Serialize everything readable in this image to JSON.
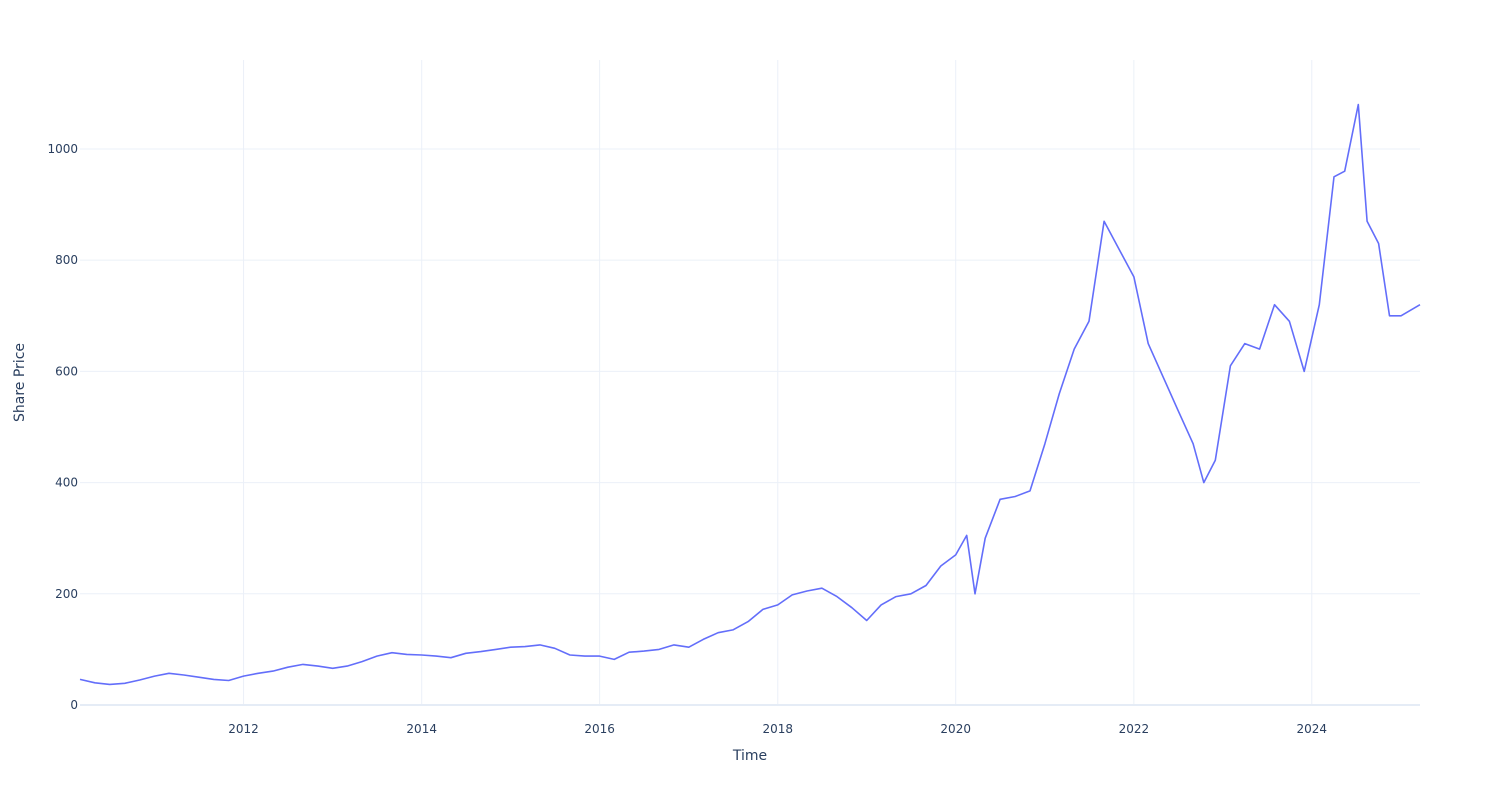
{
  "chart_data": {
    "type": "line",
    "title": "",
    "xlabel": "Time",
    "ylabel": "Share Price",
    "x_range": [
      "2010-03-01",
      "2025-03-20"
    ],
    "ylim": [
      0,
      1160
    ],
    "x_ticks": [
      {
        "date": "2012-01-01",
        "label": "2012"
      },
      {
        "date": "2014-01-01",
        "label": "2014"
      },
      {
        "date": "2016-01-01",
        "label": "2016"
      },
      {
        "date": "2018-01-01",
        "label": "2018"
      },
      {
        "date": "2020-01-01",
        "label": "2020"
      },
      {
        "date": "2022-01-01",
        "label": "2022"
      },
      {
        "date": "2024-01-01",
        "label": "2024"
      }
    ],
    "y_ticks": [
      {
        "value": 0,
        "label": "0"
      },
      {
        "value": 200,
        "label": "200"
      },
      {
        "value": 400,
        "label": "400"
      },
      {
        "value": 600,
        "label": "600"
      },
      {
        "value": 800,
        "label": "800"
      },
      {
        "value": 1000,
        "label": "1000"
      }
    ],
    "grid": true,
    "legend": "none",
    "line_color": "#636efa",
    "series": [
      {
        "x": [
          "2010-03-01",
          "2010-05-01",
          "2010-07-01",
          "2010-09-01",
          "2010-11-01",
          "2011-01-01",
          "2011-03-01",
          "2011-05-01",
          "2011-07-01",
          "2011-09-01",
          "2011-11-01",
          "2012-01-01",
          "2012-03-01",
          "2012-05-01",
          "2012-07-01",
          "2012-09-01",
          "2012-11-01",
          "2013-01-01",
          "2013-03-01",
          "2013-05-01",
          "2013-07-01",
          "2013-09-01",
          "2013-11-01",
          "2014-01-01",
          "2014-03-01",
          "2014-05-01",
          "2014-07-01",
          "2014-09-01",
          "2014-11-01",
          "2015-01-01",
          "2015-03-01",
          "2015-05-01",
          "2015-07-01",
          "2015-09-01",
          "2015-11-01",
          "2016-01-01",
          "2016-03-01",
          "2016-05-01",
          "2016-07-01",
          "2016-09-01",
          "2016-11-01",
          "2017-01-01",
          "2017-03-01",
          "2017-05-01",
          "2017-07-01",
          "2017-09-01",
          "2017-11-01",
          "2018-01-01",
          "2018-03-01",
          "2018-05-01",
          "2018-07-01",
          "2018-09-01",
          "2018-11-01",
          "2019-01-01",
          "2019-03-01",
          "2019-05-01",
          "2019-07-01",
          "2019-09-01",
          "2019-11-01",
          "2020-01-01",
          "2020-02-15",
          "2020-03-20",
          "2020-05-01",
          "2020-07-01",
          "2020-09-01",
          "2020-11-01",
          "2021-01-01",
          "2021-03-01",
          "2021-05-01",
          "2021-07-01",
          "2021-09-01",
          "2021-11-01",
          "2022-01-01",
          "2022-03-01",
          "2022-05-01",
          "2022-07-01",
          "2022-09-01",
          "2022-10-15",
          "2022-12-01",
          "2023-02-01",
          "2023-04-01",
          "2023-06-01",
          "2023-08-01",
          "2023-10-01",
          "2023-12-01",
          "2024-02-01",
          "2024-04-01",
          "2024-05-15",
          "2024-07-10",
          "2024-08-15",
          "2024-10-01",
          "2024-11-15",
          "2025-01-01",
          "2025-03-20"
        ],
        "y": [
          46,
          40,
          37,
          39,
          45,
          52,
          57,
          54,
          50,
          46,
          44,
          52,
          57,
          61,
          68,
          73,
          70,
          66,
          70,
          78,
          88,
          94,
          91,
          90,
          88,
          85,
          93,
          96,
          100,
          104,
          105,
          108,
          102,
          90,
          88,
          88,
          82,
          95,
          97,
          100,
          108,
          104,
          118,
          130,
          135,
          150,
          172,
          180,
          198,
          205,
          210,
          195,
          175,
          152,
          180,
          195,
          200,
          215,
          250,
          270,
          305,
          200,
          300,
          370,
          375,
          385,
          470,
          560,
          640,
          690,
          870,
          820,
          770,
          650,
          590,
          530,
          470,
          400,
          440,
          610,
          650,
          640,
          720,
          690,
          600,
          720,
          950,
          960,
          1080,
          870,
          830,
          700,
          700,
          720
        ]
      }
    ]
  }
}
